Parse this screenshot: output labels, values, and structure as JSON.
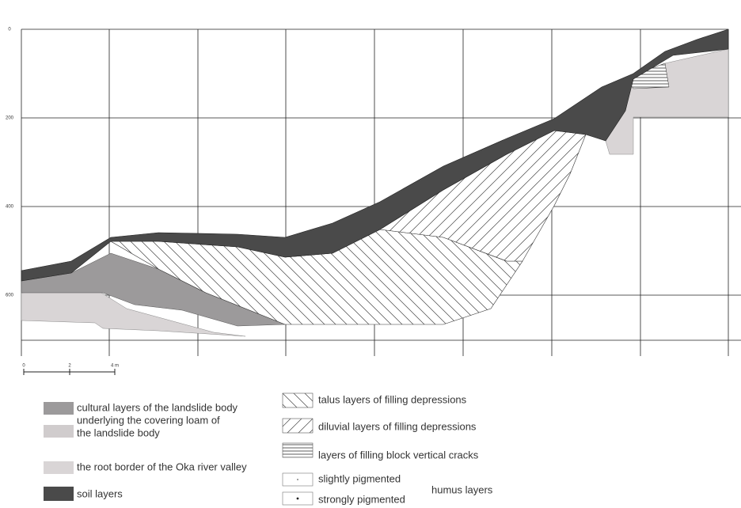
{
  "section": {
    "depth_labels": [
      "0",
      "200",
      "400",
      "600"
    ],
    "scale_labels": [
      "0",
      "2",
      "4 m"
    ]
  },
  "legend": {
    "left": [
      {
        "lines": [
          "cultural layers of the landslide body"
        ]
      },
      {
        "lines": [
          "underlying the covering loam of",
          "the landslide body"
        ]
      },
      {
        "lines": [
          "the root border of the Oka river valley"
        ]
      },
      {
        "lines": [
          "soil layers"
        ]
      }
    ],
    "right": [
      {
        "lines": [
          "talus layers of filling depressions"
        ]
      },
      {
        "lines": [
          "diluvial layers of filling depressions"
        ]
      },
      {
        "lines": [
          "layers of filling block vertical cracks"
        ]
      },
      {
        "lines": [
          "slightly pigmented"
        ]
      },
      {
        "lines": [
          "strongly pigmented"
        ]
      }
    ],
    "humus_group": "humus layers"
  }
}
